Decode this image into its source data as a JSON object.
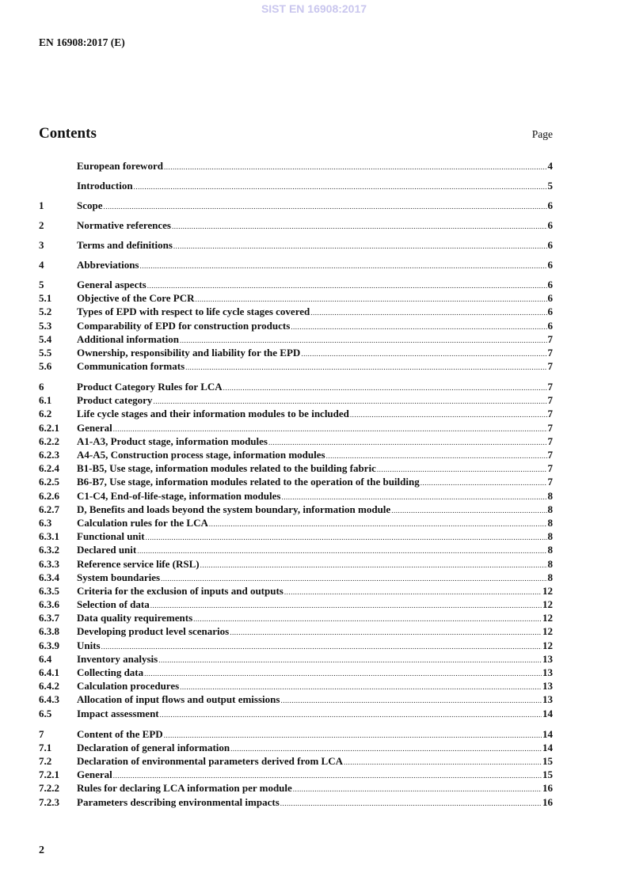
{
  "watermark": "SIST EN 16908:2017",
  "header": {
    "doc_id": "EN 16908:2017 (E)"
  },
  "contents": {
    "title": "Contents",
    "page_label": "Page"
  },
  "toc": [
    {
      "num": "",
      "title": "European foreword",
      "page": "4",
      "kind": "top"
    },
    {
      "num": "",
      "title": "Introduction",
      "page": "5",
      "kind": "top"
    },
    {
      "num": "1",
      "title": "Scope",
      "page": "6",
      "kind": "top"
    },
    {
      "num": "2",
      "title": "Normative references",
      "page": "6",
      "kind": "top"
    },
    {
      "num": "3",
      "title": "Terms and definitions",
      "page": "6",
      "kind": "top"
    },
    {
      "num": "4",
      "title": "Abbreviations",
      "page": "6",
      "kind": "top"
    },
    {
      "num": "5",
      "title": "General aspects",
      "page": "6",
      "kind": "sub"
    },
    {
      "num": "5.1",
      "title": "Objective of the Core PCR",
      "page": "6",
      "kind": "sub"
    },
    {
      "num": "5.2",
      "title": "Types of EPD with respect to life cycle stages covered",
      "page": "6",
      "kind": "sub"
    },
    {
      "num": "5.3",
      "title": "Comparability of EPD for construction products",
      "page": "6",
      "kind": "sub"
    },
    {
      "num": "5.4",
      "title": "Additional information",
      "page": "7",
      "kind": "sub"
    },
    {
      "num": "5.5",
      "title": "Ownership, responsibility and liability for the EPD",
      "page": "7",
      "kind": "sub"
    },
    {
      "num": "5.6",
      "title": "Communication formats",
      "page": "7",
      "kind": "sub"
    },
    {
      "num": "6",
      "title": "Product Category Rules for LCA",
      "page": "7",
      "kind": "gap"
    },
    {
      "num": "6.1",
      "title": "Product category",
      "page": "7",
      "kind": "sub"
    },
    {
      "num": "6.2",
      "title": "Life cycle stages and their information modules to be included",
      "page": "7",
      "kind": "sub"
    },
    {
      "num": "6.2.1",
      "title": "General",
      "page": "7",
      "kind": "sub"
    },
    {
      "num": "6.2.2",
      "title": "A1-A3, Product stage, information modules",
      "page": "7",
      "kind": "sub"
    },
    {
      "num": "6.2.3",
      "title": "A4-A5, Construction process stage, information modules",
      "page": "7",
      "kind": "sub"
    },
    {
      "num": "6.2.4",
      "title": "B1-B5, Use stage, information modules related to the building fabric",
      "page": "7",
      "kind": "sub"
    },
    {
      "num": "6.2.5",
      "title": "B6-B7, Use stage, information modules related to the operation of the building",
      "page": "7",
      "kind": "sub"
    },
    {
      "num": "6.2.6",
      "title": "C1-C4, End-of-life-stage, information modules",
      "page": "8",
      "kind": "sub"
    },
    {
      "num": "6.2.7",
      "title": "D, Benefits and loads beyond the system boundary, information module",
      "page": "8",
      "kind": "sub"
    },
    {
      "num": "6.3",
      "title": "Calculation rules for the LCA",
      "page": "8",
      "kind": "sub"
    },
    {
      "num": "6.3.1",
      "title": "Functional unit",
      "page": "8",
      "kind": "sub"
    },
    {
      "num": "6.3.2",
      "title": "Declared unit",
      "page": "8",
      "kind": "sub"
    },
    {
      "num": "6.3.3",
      "title": "Reference service life (RSL)",
      "page": "8",
      "kind": "sub"
    },
    {
      "num": "6.3.4",
      "title": "System boundaries",
      "page": "8",
      "kind": "sub"
    },
    {
      "num": "6.3.5",
      "title": "Criteria for the exclusion of inputs and outputs",
      "page": "12",
      "kind": "sub"
    },
    {
      "num": "6.3.6",
      "title": "Selection of data",
      "page": "12",
      "kind": "sub"
    },
    {
      "num": "6.3.7",
      "title": "Data quality requirements",
      "page": "12",
      "kind": "sub"
    },
    {
      "num": "6.3.8",
      "title": "Developing product level scenarios",
      "page": "12",
      "kind": "sub"
    },
    {
      "num": "6.3.9",
      "title": "Units",
      "page": "12",
      "kind": "sub"
    },
    {
      "num": "6.4",
      "title": "Inventory analysis",
      "page": "13",
      "kind": "sub"
    },
    {
      "num": "6.4.1",
      "title": "Collecting data",
      "page": "13",
      "kind": "sub"
    },
    {
      "num": "6.4.2",
      "title": "Calculation procedures",
      "page": "13",
      "kind": "sub"
    },
    {
      "num": "6.4.3",
      "title": "Allocation of input flows and output emissions",
      "page": "13",
      "kind": "sub"
    },
    {
      "num": "6.5",
      "title": "Impact assessment",
      "page": "14",
      "kind": "sub"
    },
    {
      "num": "7",
      "title": "Content of the EPD",
      "page": "14",
      "kind": "gap"
    },
    {
      "num": "7.1",
      "title": "Declaration of general information",
      "page": "14",
      "kind": "sub"
    },
    {
      "num": "7.2",
      "title": "Declaration of environmental parameters derived from LCA",
      "page": "15",
      "kind": "sub"
    },
    {
      "num": "7.2.1",
      "title": "General",
      "page": "15",
      "kind": "sub"
    },
    {
      "num": "7.2.2",
      "title": "Rules for declaring LCA information per module",
      "page": "16",
      "kind": "sub"
    },
    {
      "num": "7.2.3",
      "title": "Parameters describing environmental impacts",
      "page": "16",
      "kind": "sub"
    }
  ],
  "footer": {
    "page_number": "2"
  }
}
